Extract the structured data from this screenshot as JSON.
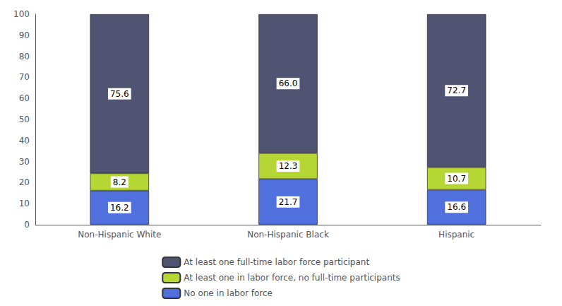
{
  "chart_data": {
    "type": "bar",
    "stacked": true,
    "categories": [
      "Non-Hispanic White",
      "Non-Hispanic Black",
      "Hispanic"
    ],
    "series": [
      {
        "name": "No one in labor force",
        "values": [
          16.2,
          21.7,
          16.6
        ]
      },
      {
        "name": "At least one in labor force, no full-time participants",
        "values": [
          8.2,
          12.3,
          10.7
        ]
      },
      {
        "name": "At least one full-time labor force participant",
        "values": [
          75.6,
          66.0,
          72.7
        ],
        "value_labels": [
          "75.6",
          "66.0",
          "72.7"
        ]
      }
    ],
    "ylim": [
      0,
      100
    ],
    "yticks": [
      0,
      10,
      20,
      30,
      40,
      50,
      60,
      70,
      80,
      90,
      100
    ],
    "grid": false,
    "data_labels": true,
    "legend": "bottom"
  }
}
